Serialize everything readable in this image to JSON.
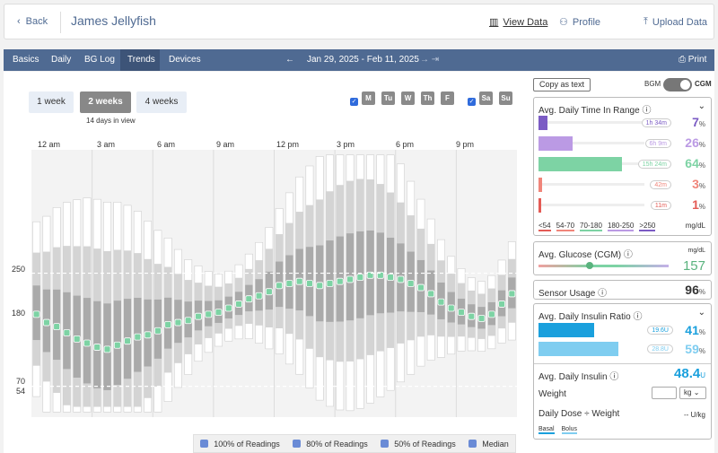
{
  "header": {
    "back_label": "Back",
    "patient_name": "James Jellyfish",
    "view_data": "View Data",
    "profile": "Profile",
    "upload": "Upload Data"
  },
  "nav": {
    "tabs": [
      "Basics",
      "Daily",
      "BG Log",
      "Trends",
      "Devices"
    ],
    "active_tab": "Trends",
    "date_range": "Jan 29, 2025 - Feb 11, 2025",
    "print": "Print"
  },
  "controls": {
    "ranges": [
      "1 week",
      "2 weeks",
      "4 weeks"
    ],
    "active_range": "2 weeks",
    "days_in_view": "14 days in view",
    "weekdays": [
      "M",
      "Tu",
      "W",
      "Th",
      "F"
    ],
    "weekends": [
      "Sa",
      "Su"
    ]
  },
  "chart_data": {
    "type": "box",
    "x_ticks": [
      "12 am",
      "3 am",
      "6 am",
      "9 am",
      "12 pm",
      "3 pm",
      "6 pm",
      "9 pm"
    ],
    "y_ticks": [
      250,
      180,
      70,
      54
    ],
    "y_range": [
      40,
      250
    ],
    "bins_per_day": 48,
    "colors": {
      "range100": "#ffffff",
      "range80": "#d4d4d4",
      "range50": "#aaaaaa",
      "median_in": "#7dd3a4",
      "median_high": "#bb9ae4"
    },
    "series_median": [
      140,
      132,
      128,
      122,
      116,
      112,
      108,
      106,
      110,
      114,
      118,
      120,
      124,
      130,
      132,
      134,
      138,
      140,
      142,
      146,
      150,
      155,
      158,
      162,
      168,
      170,
      172,
      170,
      168,
      170,
      172,
      174,
      176,
      178,
      178,
      176,
      174,
      170,
      166,
      160,
      152,
      146,
      142,
      138,
      136,
      140,
      150,
      160
    ],
    "legend": [
      "100% of Readings",
      "80% of Readings",
      "50% of Readings",
      "Median"
    ]
  },
  "stats": {
    "copy_label": "Copy as text",
    "bgm": "BGM",
    "cgm": "CGM",
    "tir_title": "Avg. Daily Time In Range",
    "tir": [
      {
        "label": "<54",
        "time": "11m",
        "pct": "1",
        "color": "#e45b55",
        "value": 1
      },
      {
        "label": "54-70",
        "time": "42m",
        "pct": "3",
        "color": "#f0857a",
        "value": 3
      },
      {
        "label": "70-180",
        "time": "15h 24m",
        "pct": "64",
        "color": "#7dd3a4",
        "value": 64
      },
      {
        "label": "180-250",
        "time": "6h 9m",
        "pct": "26",
        "color": "#bb9ae4",
        "value": 26
      },
      {
        "label": ">250",
        "time": "1h 34m",
        "pct": "7",
        "color": "#7b5bc4",
        "value": 7
      }
    ],
    "units": "mg/dL",
    "avg_glucose_title": "Avg. Glucose (CGM)",
    "avg_glucose_value": "157",
    "sensor_usage_title": "Sensor Usage",
    "sensor_usage_value": "96",
    "insulin_title": "Avg. Daily Insulin Ratio",
    "basal": {
      "label": "Basal",
      "units": "19.6U",
      "pct": "41",
      "value": 41
    },
    "bolus": {
      "label": "Bolus",
      "units": "28.8U",
      "pct": "59",
      "value": 59
    },
    "avg_insulin_title": "Avg. Daily Insulin",
    "avg_insulin_value": "48.4",
    "avg_insulin_unit": "U",
    "weight_label": "Weight",
    "weight_unit": "kg",
    "dose_label": "Daily Dose ÷ Weight",
    "dose_value": "-- U/kg"
  }
}
